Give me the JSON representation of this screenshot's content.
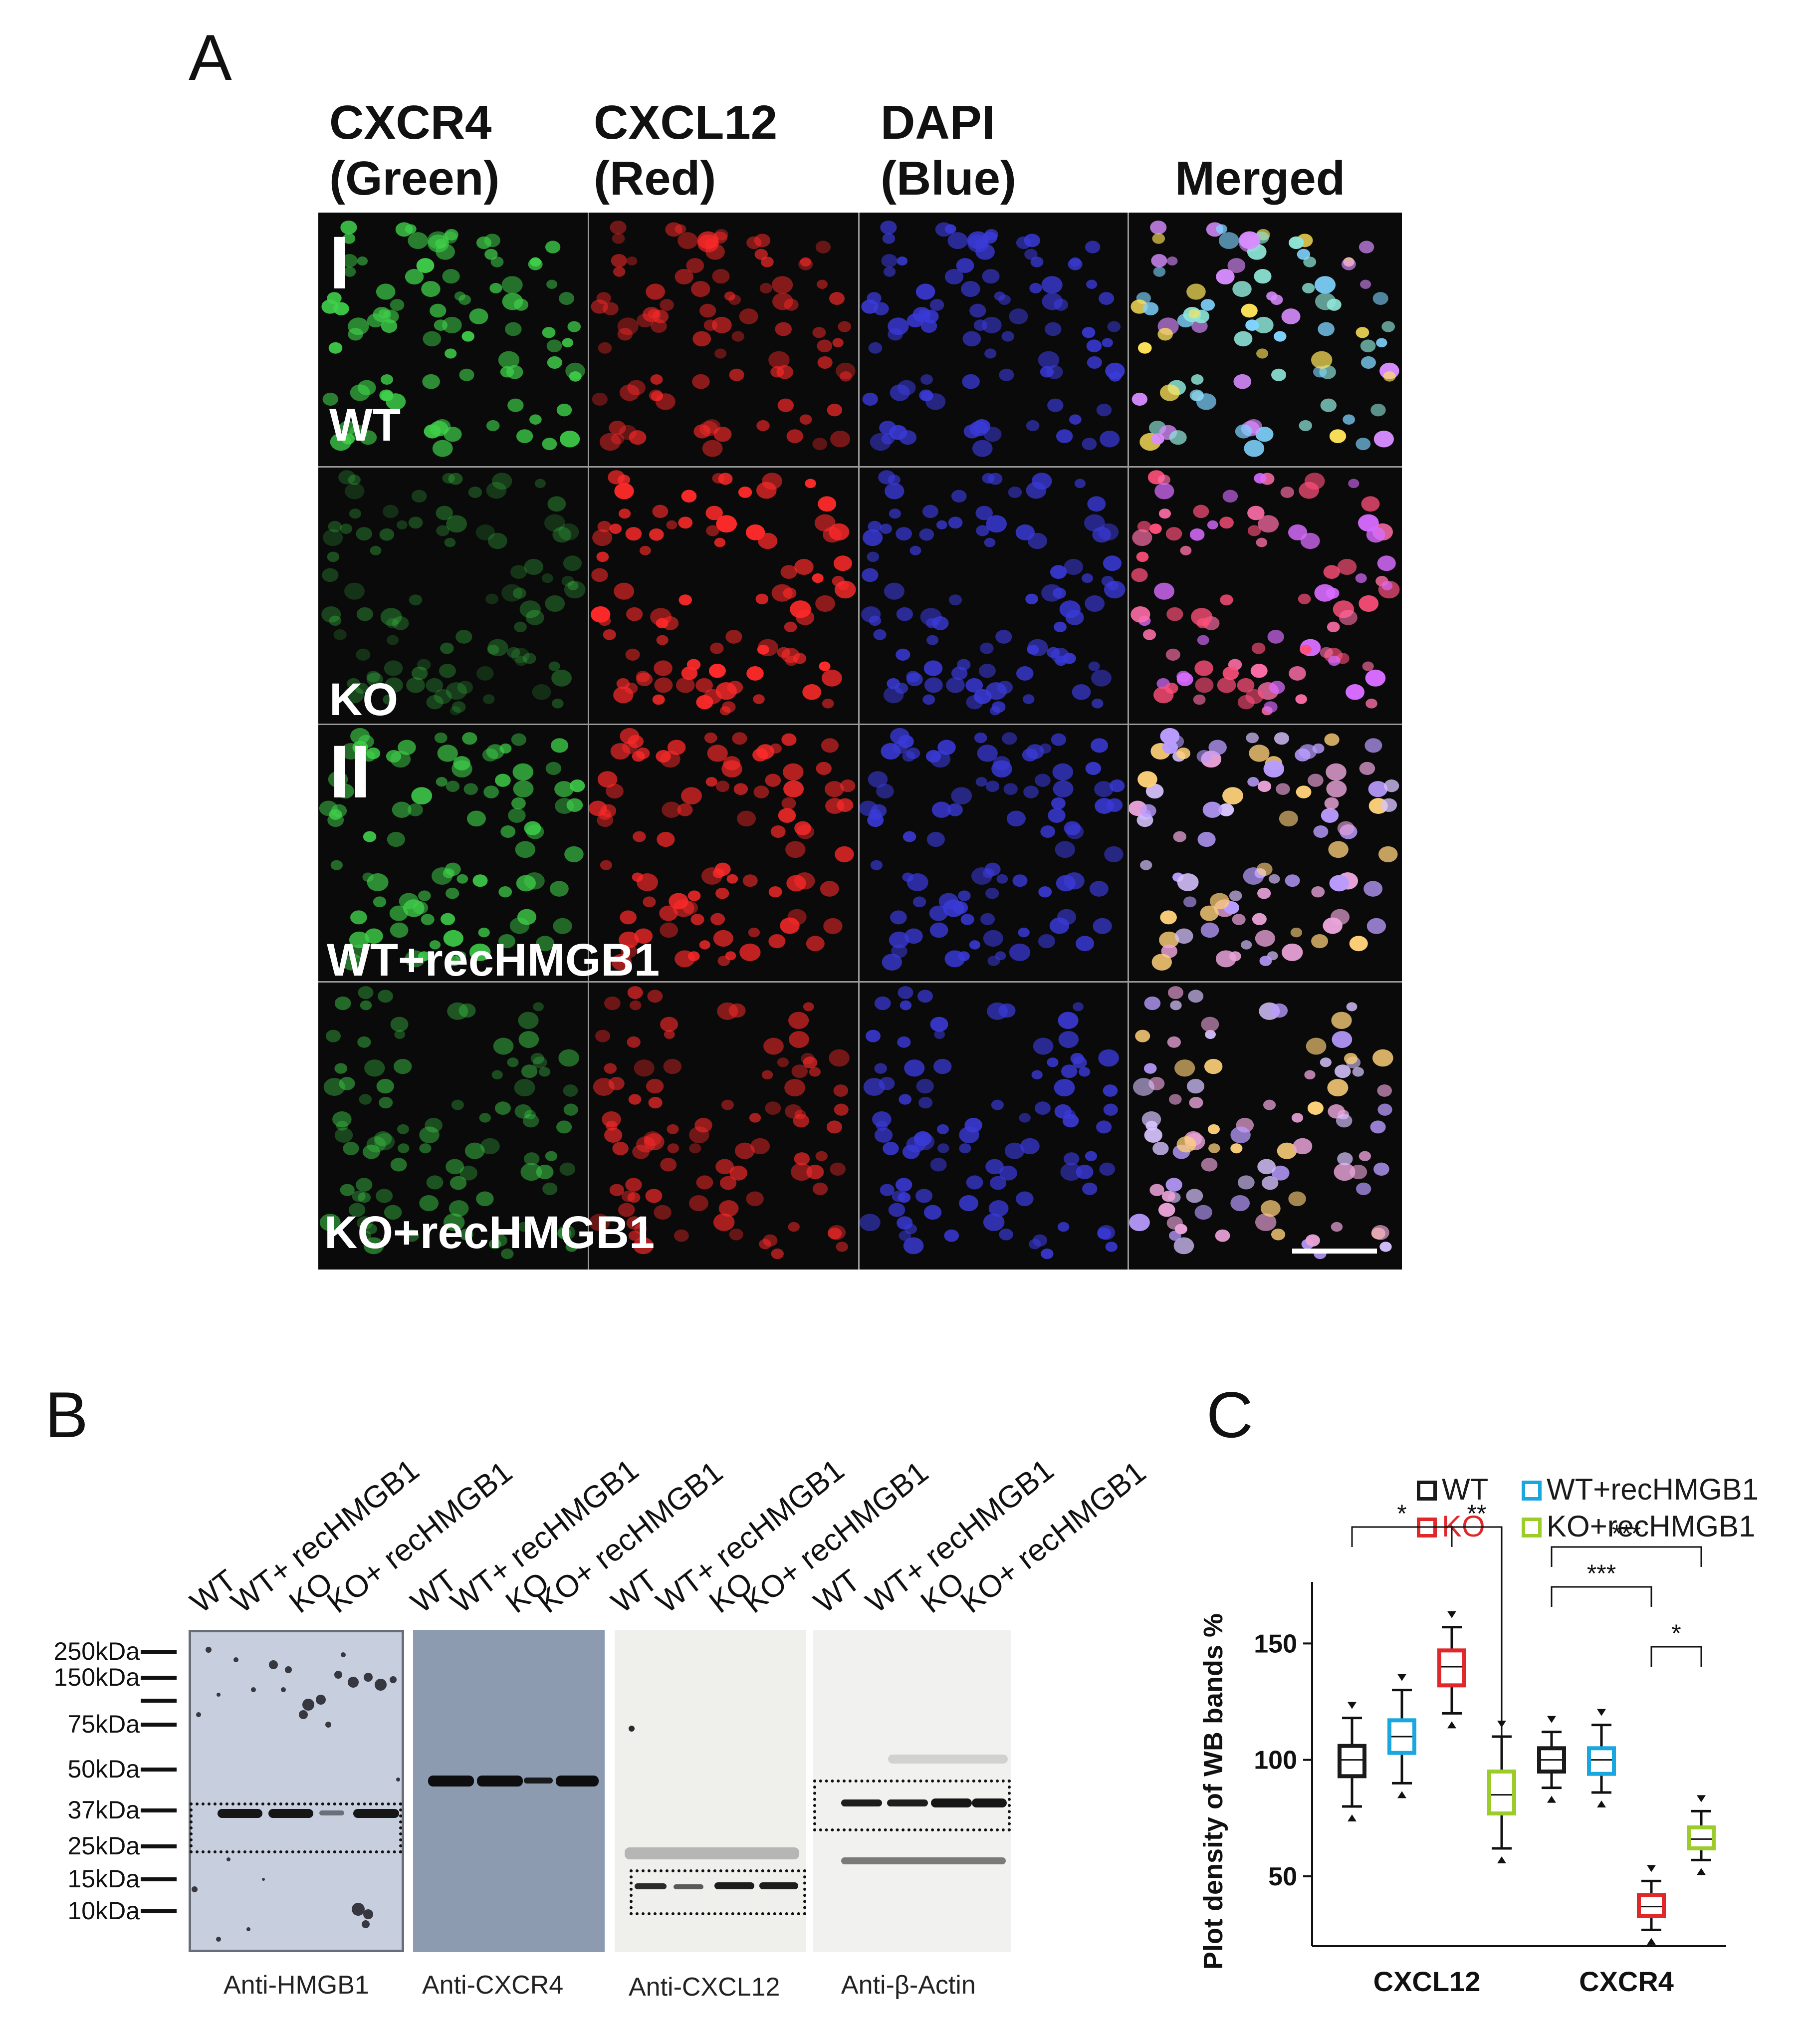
{
  "panel_a": {
    "letter": "A",
    "columns": [
      {
        "line1": "CXCR4",
        "line2": "(Green)"
      },
      {
        "line1": "CXCL12",
        "line2": "(Red)"
      },
      {
        "line1": "DAPI",
        "line2": "(Blue)"
      },
      {
        "line1": "",
        "line2": "Merged"
      }
    ],
    "groups": [
      "I",
      "II"
    ],
    "rows": [
      "WT",
      "KO",
      "WT+recHMGB1",
      "KO+recHMGB1"
    ],
    "colors": {
      "green": "#3fd04a",
      "red": "#ff2a2a",
      "blue": "#3a3ad8"
    }
  },
  "panel_b": {
    "letter": "B",
    "lane_labels": [
      "WT",
      "WT+ recHMGB1",
      "KO",
      "KO+ recHMGB1"
    ],
    "markers": [
      "250kDa",
      "150kDa",
      "75kDa",
      "50kDa",
      "37kDa",
      "25kDa",
      "15kDa",
      "10kDa"
    ],
    "blots": [
      "Anti-HMGB1",
      "Anti-CXCR4",
      "Anti-CXCL12",
      "Anti-β-Actin"
    ]
  },
  "panel_c": {
    "letter": "C",
    "legend": [
      {
        "label": "WT",
        "color": "#1a1a1a"
      },
      {
        "label": "WT+recHMGB1",
        "color": "#1aa7e0"
      },
      {
        "label": "KO",
        "color": "#e0282a"
      },
      {
        "label": "KO+recHMGB1",
        "color": "#9ccc2a"
      }
    ]
  },
  "chart_data": {
    "type": "box",
    "title": "",
    "ylabel": "Plot density of WB bands %",
    "xlabel": "",
    "categories": [
      "CXCL12",
      "CXCR4"
    ],
    "yticks": [
      50,
      100,
      150
    ],
    "ylim": [
      20,
      170
    ],
    "series": [
      {
        "name": "WT",
        "color": "#1a1a1a",
        "boxes": [
          {
            "median": 100,
            "q1": 93,
            "q3": 106,
            "min": 80,
            "max": 118
          },
          {
            "median": 100,
            "q1": 95,
            "q3": 105,
            "min": 88,
            "max": 112
          }
        ]
      },
      {
        "name": "WT+recHMGB1",
        "color": "#1aa7e0",
        "boxes": [
          {
            "median": 110,
            "q1": 103,
            "q3": 117,
            "min": 90,
            "max": 130
          },
          {
            "median": 100,
            "q1": 94,
            "q3": 105,
            "min": 86,
            "max": 115
          }
        ]
      },
      {
        "name": "KO",
        "color": "#e0282a",
        "boxes": [
          {
            "median": 140,
            "q1": 132,
            "q3": 147,
            "min": 120,
            "max": 157
          },
          {
            "median": 37,
            "q1": 33,
            "q3": 42,
            "min": 27,
            "max": 48
          }
        ]
      },
      {
        "name": "KO+recHMGB1",
        "color": "#9ccc2a",
        "boxes": [
          {
            "median": 85,
            "q1": 77,
            "q3": 95,
            "min": 62,
            "max": 110
          },
          {
            "median": 66,
            "q1": 62,
            "q3": 71,
            "min": 57,
            "max": 78
          }
        ]
      }
    ],
    "significance": [
      {
        "label": "*",
        "category": "CXCL12",
        "from": "WT",
        "to": "KO"
      },
      {
        "label": "**",
        "category": "CXCL12",
        "from": "KO",
        "to": "KO+recHMGB1"
      },
      {
        "label": "***",
        "category": "CXCR4",
        "from": "WT",
        "to": "KO+recHMGB1"
      },
      {
        "label": "***",
        "category": "CXCR4",
        "from": "WT",
        "to": "KO"
      },
      {
        "label": "*",
        "category": "CXCR4",
        "from": "KO",
        "to": "KO+recHMGB1"
      }
    ]
  }
}
